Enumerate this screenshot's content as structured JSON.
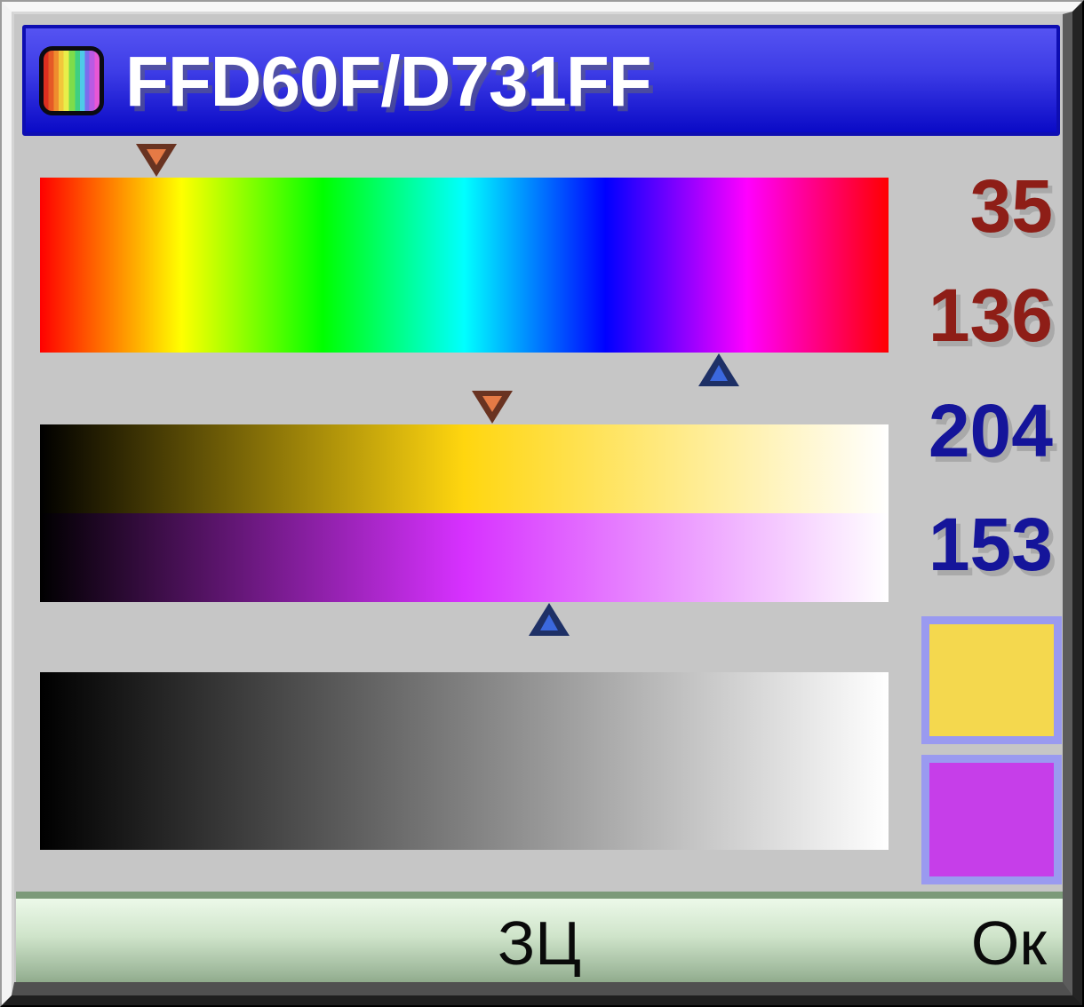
{
  "window": {
    "title": "FFD60F/D731FF",
    "icon": "rainbow-palette-icon"
  },
  "values": {
    "hue1": 35,
    "brightness1": 136,
    "hue2": 204,
    "brightness2": 153,
    "scale_max": 255
  },
  "swatches": {
    "color1": {
      "hex": "#FFD60F",
      "display": "#F4D84E"
    },
    "color2": {
      "hex": "#D731FF",
      "display": "#C63EE9"
    }
  },
  "buttons": {
    "set_color": "ЗЦ",
    "ok": "Ок"
  },
  "theme": {
    "body_gray": "#C6C6C6",
    "titlebar_blue_top": "#5553F2",
    "titlebar_blue_bottom": "#0A0AC6",
    "titlebar_border": "#0E0EB2",
    "value_red": "#8E1E17",
    "value_navy": "#15159A",
    "swatch_border": "#9A9AF0",
    "marker1_outer": "#693321",
    "marker1_inner": "#E57A45",
    "marker2_outer": "#1E3066",
    "marker2_inner": "#3B68DE",
    "bottombar_green_top": "#ECF9E9",
    "bottombar_green_bottom": "#90AB8C"
  }
}
